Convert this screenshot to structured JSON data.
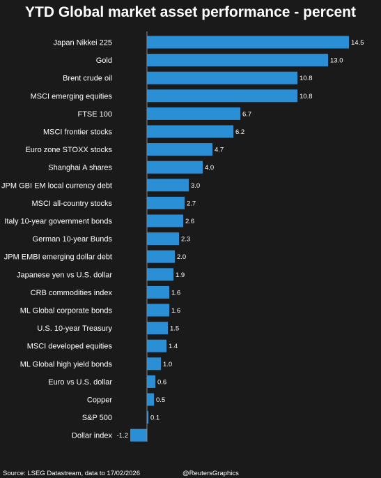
{
  "chart_data": {
    "type": "bar",
    "orientation": "horizontal",
    "title": "YTD Global market asset performance - percent",
    "xlabel": "",
    "ylabel": "",
    "grid": false,
    "legend": "none",
    "xlim": [
      -1.2,
      14.5
    ],
    "bar_color": "#2b8fd6",
    "categories": [
      "Japan Nikkei 225",
      "Gold",
      "Brent crude oil",
      "MSCI emerging equities",
      "FTSE 100",
      "MSCI frontier stocks",
      "Euro zone STOXX stocks",
      "Shanghai A shares",
      "JPM GBI EM local currency debt",
      "MSCI all-country stocks",
      "Italy 10-year government bonds",
      "German 10-year Bunds",
      "JPM EMBI emerging dollar debt",
      "Japanese yen vs U.S. dollar",
      "CRB commodities index",
      "ML Global corporate bonds",
      "U.S. 10-year Treasury",
      "MSCI developed equities",
      "ML Global high yield bonds",
      "Euro vs U.S. dollar",
      "Copper",
      "S&P 500",
      "Dollar index"
    ],
    "values": [
      14.5,
      13.0,
      10.8,
      10.8,
      6.7,
      6.2,
      4.7,
      4.0,
      3.0,
      2.7,
      2.6,
      2.3,
      2.0,
      1.9,
      1.6,
      1.6,
      1.5,
      1.4,
      1.0,
      0.6,
      0.5,
      0.1,
      -1.2
    ],
    "value_labels": [
      "14.5",
      "13.0",
      "10.8",
      "10.8",
      "6.7",
      "6.2",
      "4.7",
      "4.0",
      "3.0",
      "2.7",
      "2.6",
      "2.3",
      "2.0",
      "1.9",
      "1.6",
      "1.6",
      "1.5",
      "1.4",
      "1.0",
      "0.6",
      "0.5",
      "0.1",
      "-1.2"
    ]
  },
  "footer": {
    "source": "Source: LSEG Datastream, data to 17/02/2026",
    "credit": "@ReutersGraphics"
  }
}
